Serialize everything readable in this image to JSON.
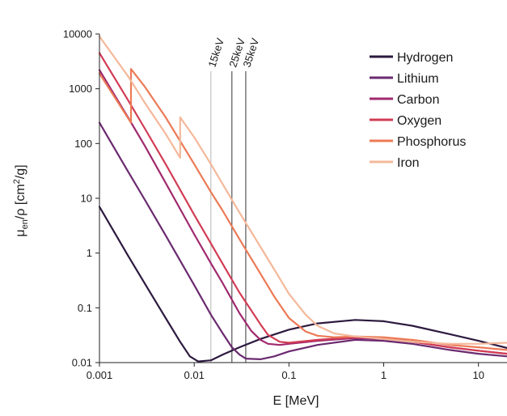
{
  "chart_data": {
    "type": "line",
    "title": "",
    "xlabel": "E [MeV]",
    "ylabel": {
      "prefix": "μ",
      "sub": "en",
      "middle": "/ρ [cm",
      "sup": "2",
      "suffix": "/g]"
    },
    "x_scale": "log",
    "y_scale": "log",
    "xlim": [
      0.001,
      20
    ],
    "ylim": [
      0.01,
      10000
    ],
    "x_ticks": [
      {
        "value": 0.001,
        "label": "0.001"
      },
      {
        "value": 0.01,
        "label": "0.01"
      },
      {
        "value": 0.1,
        "label": "0.1"
      },
      {
        "value": 1,
        "label": "1"
      },
      {
        "value": 10,
        "label": "10"
      }
    ],
    "y_ticks": [
      {
        "value": 0.01,
        "label": "0.01"
      },
      {
        "value": 0.1,
        "label": "0.1"
      },
      {
        "value": 1,
        "label": "1"
      },
      {
        "value": 10,
        "label": "10"
      },
      {
        "value": 100,
        "label": "100"
      },
      {
        "value": 1000,
        "label": "1000"
      },
      {
        "value": 10000,
        "label": "10000"
      }
    ],
    "grid": false,
    "legend_position": "top-right",
    "markers": [
      {
        "label": "15keV",
        "x": 0.015,
        "color": "#b5b5b5"
      },
      {
        "label": "25keV",
        "x": 0.025,
        "color": "#333333"
      },
      {
        "label": "35keV",
        "x": 0.035,
        "color": "#333333"
      }
    ],
    "series": [
      {
        "name": "Hydrogen",
        "color": "#2d1a3f",
        "points": [
          [
            0.001,
            7
          ],
          [
            0.002,
            0.9
          ],
          [
            0.003,
            0.28
          ],
          [
            0.005,
            0.065
          ],
          [
            0.007,
            0.025
          ],
          [
            0.009,
            0.013
          ],
          [
            0.011,
            0.0105
          ],
          [
            0.015,
            0.011
          ],
          [
            0.02,
            0.014
          ],
          [
            0.03,
            0.019
          ],
          [
            0.05,
            0.027
          ],
          [
            0.1,
            0.04
          ],
          [
            0.2,
            0.052
          ],
          [
            0.5,
            0.06
          ],
          [
            1,
            0.057
          ],
          [
            2,
            0.047
          ],
          [
            5,
            0.033
          ],
          [
            10,
            0.025
          ],
          [
            20,
            0.0185
          ]
        ]
      },
      {
        "name": "Lithium",
        "color": "#6b2a6f",
        "points": [
          [
            0.001,
            240
          ],
          [
            0.002,
            31
          ],
          [
            0.003,
            9.5
          ],
          [
            0.005,
            2.1
          ],
          [
            0.01,
            0.26
          ],
          [
            0.015,
            0.075
          ],
          [
            0.02,
            0.034
          ],
          [
            0.025,
            0.019
          ],
          [
            0.03,
            0.014
          ],
          [
            0.035,
            0.0118
          ],
          [
            0.05,
            0.0115
          ],
          [
            0.07,
            0.013
          ],
          [
            0.1,
            0.016
          ],
          [
            0.2,
            0.021
          ],
          [
            0.5,
            0.026
          ],
          [
            1,
            0.025
          ],
          [
            2,
            0.022
          ],
          [
            5,
            0.017
          ],
          [
            10,
            0.0145
          ],
          [
            20,
            0.013
          ]
        ]
      },
      {
        "name": "Carbon",
        "color": "#a02a6e",
        "points": [
          [
            0.001,
            2200
          ],
          [
            0.002,
            300
          ],
          [
            0.003,
            92
          ],
          [
            0.005,
            19
          ],
          [
            0.01,
            2.2
          ],
          [
            0.015,
            0.65
          ],
          [
            0.02,
            0.28
          ],
          [
            0.03,
            0.08
          ],
          [
            0.04,
            0.038
          ],
          [
            0.05,
            0.026
          ],
          [
            0.06,
            0.022
          ],
          [
            0.08,
            0.021
          ],
          [
            0.1,
            0.022
          ],
          [
            0.2,
            0.025
          ],
          [
            0.5,
            0.028
          ],
          [
            1,
            0.027
          ],
          [
            2,
            0.024
          ],
          [
            5,
            0.019
          ],
          [
            10,
            0.0165
          ],
          [
            20,
            0.0145
          ]
        ]
      },
      {
        "name": "Oxygen",
        "color": "#d23c54",
        "points": [
          [
            0.001,
            4500
          ],
          [
            0.002,
            620
          ],
          [
            0.003,
            190
          ],
          [
            0.005,
            42
          ],
          [
            0.01,
            5
          ],
          [
            0.015,
            1.5
          ],
          [
            0.02,
            0.63
          ],
          [
            0.03,
            0.19
          ],
          [
            0.05,
            0.05
          ],
          [
            0.06,
            0.032
          ],
          [
            0.08,
            0.024
          ],
          [
            0.1,
            0.023
          ],
          [
            0.2,
            0.026
          ],
          [
            0.5,
            0.029
          ],
          [
            1,
            0.028
          ],
          [
            2,
            0.024
          ],
          [
            5,
            0.019
          ],
          [
            10,
            0.0165
          ],
          [
            20,
            0.0145
          ]
        ]
      },
      {
        "name": "Phosphorus",
        "color": "#ec7a56",
        "points": [
          [
            0.001,
            1900
          ],
          [
            0.00215,
            240
          ],
          [
            0.00215,
            2300
          ],
          [
            0.003,
            1100
          ],
          [
            0.005,
            300
          ],
          [
            0.01,
            42
          ],
          [
            0.015,
            13
          ],
          [
            0.02,
            5.9
          ],
          [
            0.03,
            1.8
          ],
          [
            0.05,
            0.42
          ],
          [
            0.07,
            0.16
          ],
          [
            0.1,
            0.065
          ],
          [
            0.15,
            0.037
          ],
          [
            0.2,
            0.031
          ],
          [
            0.3,
            0.029
          ],
          [
            0.5,
            0.03
          ],
          [
            1,
            0.029
          ],
          [
            2,
            0.026
          ],
          [
            5,
            0.021
          ],
          [
            10,
            0.019
          ],
          [
            20,
            0.017
          ]
        ]
      },
      {
        "name": "Iron",
        "color": "#f4b89a",
        "points": [
          [
            0.001,
            9000
          ],
          [
            0.002,
            1700
          ],
          [
            0.003,
            560
          ],
          [
            0.005,
            150
          ],
          [
            0.0071,
            55
          ],
          [
            0.0071,
            300
          ],
          [
            0.01,
            130
          ],
          [
            0.015,
            42
          ],
          [
            0.02,
            18
          ],
          [
            0.03,
            5.5
          ],
          [
            0.05,
            1.3
          ],
          [
            0.07,
            0.5
          ],
          [
            0.1,
            0.18
          ],
          [
            0.15,
            0.075
          ],
          [
            0.2,
            0.047
          ],
          [
            0.3,
            0.034
          ],
          [
            0.5,
            0.03
          ],
          [
            1,
            0.027
          ],
          [
            2,
            0.024
          ],
          [
            5,
            0.022
          ],
          [
            10,
            0.022
          ],
          [
            20,
            0.023
          ]
        ]
      }
    ]
  }
}
